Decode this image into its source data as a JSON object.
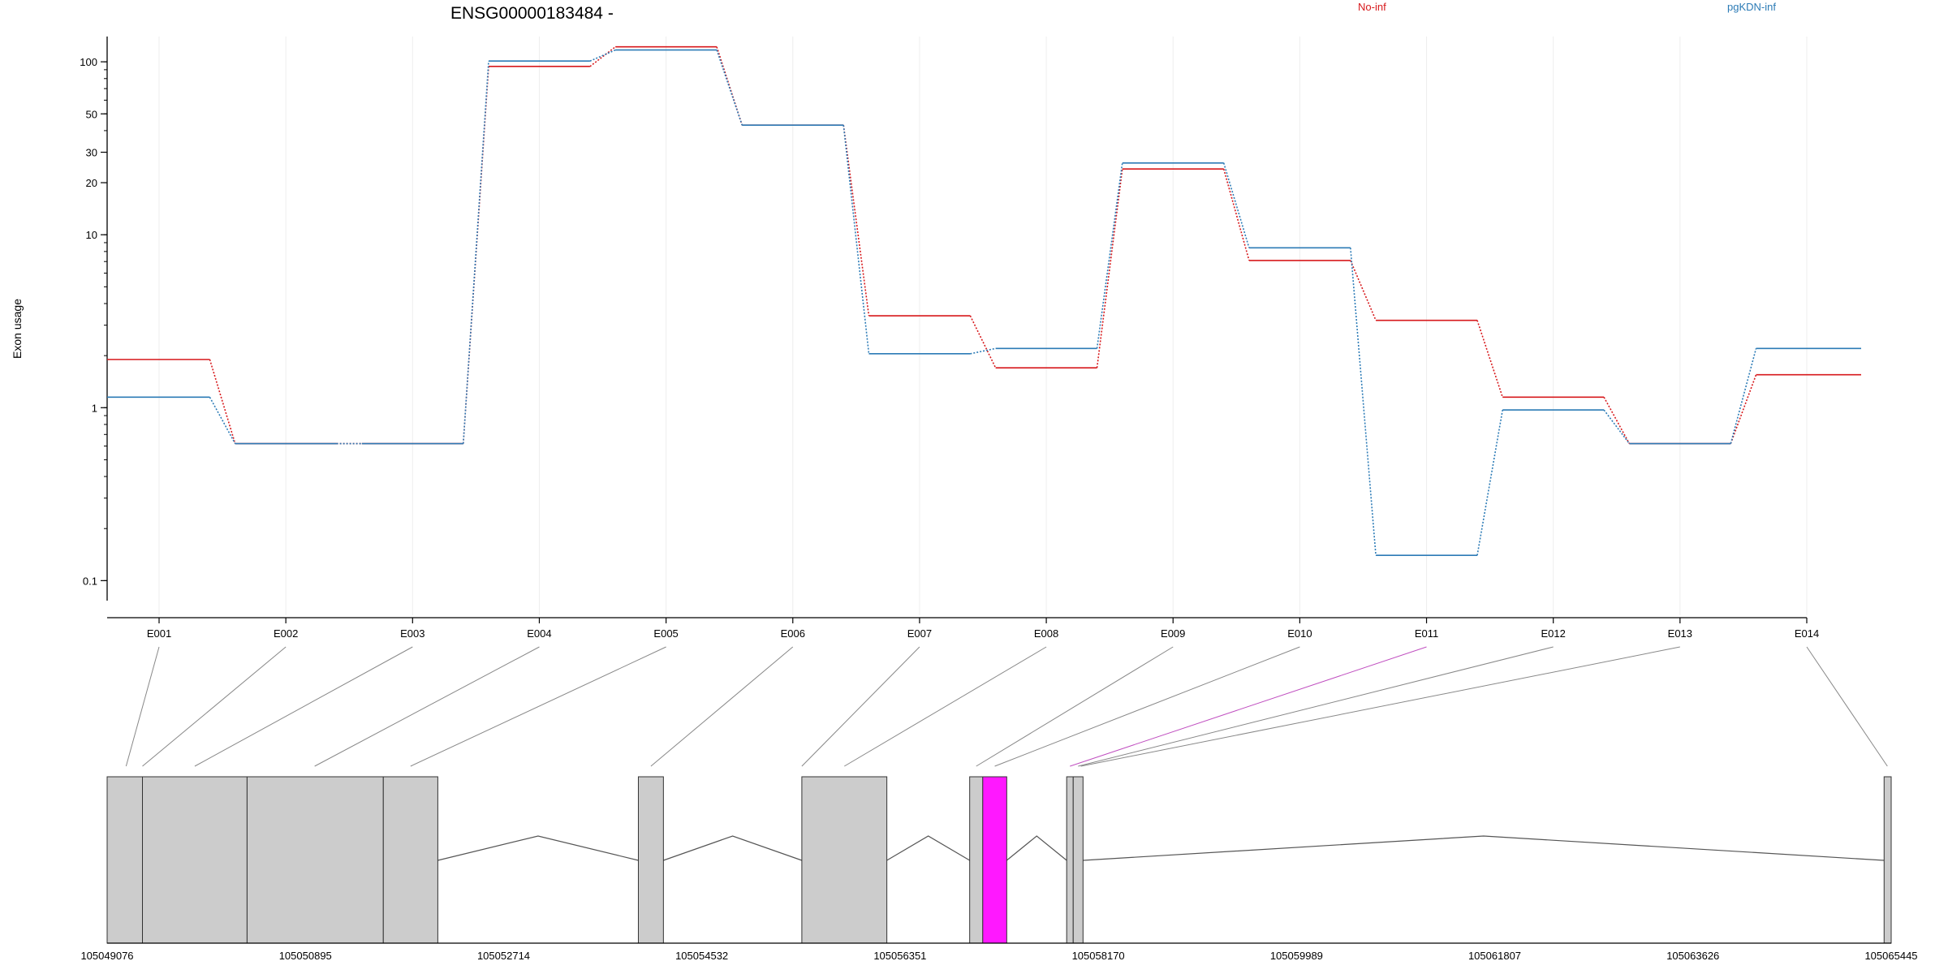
{
  "colors": {
    "no_inf": "#d7191c",
    "pgkdn_inf": "#2c7bb6",
    "highlight": "#ff18ff",
    "exon_fill": "#cccccc",
    "grid": "#eeeeee"
  },
  "chart_data": {
    "type": "line",
    "title": "ENSG00000183484 -",
    "ylabel": "Exon usage",
    "xlabel": "",
    "y_scale": "log",
    "ylim": [
      0.08,
      140
    ],
    "y_ticks": [
      0.1,
      1,
      10,
      20,
      30,
      50,
      100
    ],
    "y_tick_labels": [
      "0.1",
      "1",
      "10",
      "20",
      "30",
      "50",
      "100"
    ],
    "categories": [
      "E001",
      "E002",
      "E003",
      "E004",
      "E005",
      "E006",
      "E007",
      "E008",
      "E009",
      "E010",
      "E011",
      "E012",
      "E013",
      "E014"
    ],
    "highlighted_exon": "E011",
    "grid": "vertical",
    "legend_position": "top-right",
    "series": [
      {
        "name": "No-inf",
        "color": "#d7191c",
        "values": [
          1.9,
          0.62,
          0.62,
          94,
          122,
          43,
          3.4,
          1.7,
          24,
          7.1,
          3.2,
          1.15,
          0.62,
          1.55
        ]
      },
      {
        "name": "pgKDN-inf",
        "color": "#2c7bb6",
        "values": [
          1.15,
          0.62,
          0.62,
          101,
          117,
          43,
          2.05,
          2.2,
          26,
          8.4,
          0.14,
          0.97,
          0.62,
          2.2
        ]
      }
    ],
    "gene_model": {
      "axis_ticks": [
        "105049076",
        "105050895",
        "105052714",
        "105054532",
        "105056351",
        "105058170",
        "105059989",
        "105061807",
        "105063626",
        "105065445"
      ],
      "tick_positions": [
        105049076,
        105050895,
        105052714,
        105054532,
        105056351,
        105058170,
        105059989,
        105061807,
        105063626,
        105065445
      ],
      "range": [
        105049076,
        105065445
      ],
      "exons": [
        {
          "start": 105049076,
          "end": 105049400
        },
        {
          "start": 105049400,
          "end": 105050360
        },
        {
          "start": 105050360,
          "end": 105051610
        },
        {
          "start": 105051610,
          "end": 105052110
        },
        {
          "start": 105053950,
          "end": 105054180
        },
        {
          "start": 105055450,
          "end": 105056230
        },
        {
          "start": 105056990,
          "end": 105057110
        },
        {
          "start": 105057110,
          "end": 105057330,
          "highlight": true
        },
        {
          "start": 105057880,
          "end": 105057940
        },
        {
          "start": 105057940,
          "end": 105058030
        },
        {
          "start": 105065380,
          "end": 105065445
        }
      ],
      "introns": [
        [
          105052110,
          105053950
        ],
        [
          105054180,
          105055450
        ],
        [
          105056230,
          105056990
        ],
        [
          105057330,
          105057880
        ],
        [
          105058030,
          105065380
        ]
      ],
      "exon_map": [
        {
          "exon": "E001",
          "pos": 105049250
        },
        {
          "exon": "E002",
          "pos": 105049400
        },
        {
          "exon": "E003",
          "pos": 105049880
        },
        {
          "exon": "E004",
          "pos": 105050980
        },
        {
          "exon": "E005",
          "pos": 105051860
        },
        {
          "exon": "E006",
          "pos": 105054065
        },
        {
          "exon": "E007",
          "pos": 105055450
        },
        {
          "exon": "E008",
          "pos": 105055840
        },
        {
          "exon": "E009",
          "pos": 105057050
        },
        {
          "exon": "E010",
          "pos": 105057220
        },
        {
          "exon": "E011",
          "pos": 105057910
        },
        {
          "exon": "E012",
          "pos": 105057985
        },
        {
          "exon": "E013",
          "pos": 105058010
        },
        {
          "exon": "E014",
          "pos": 105065410
        }
      ]
    }
  }
}
